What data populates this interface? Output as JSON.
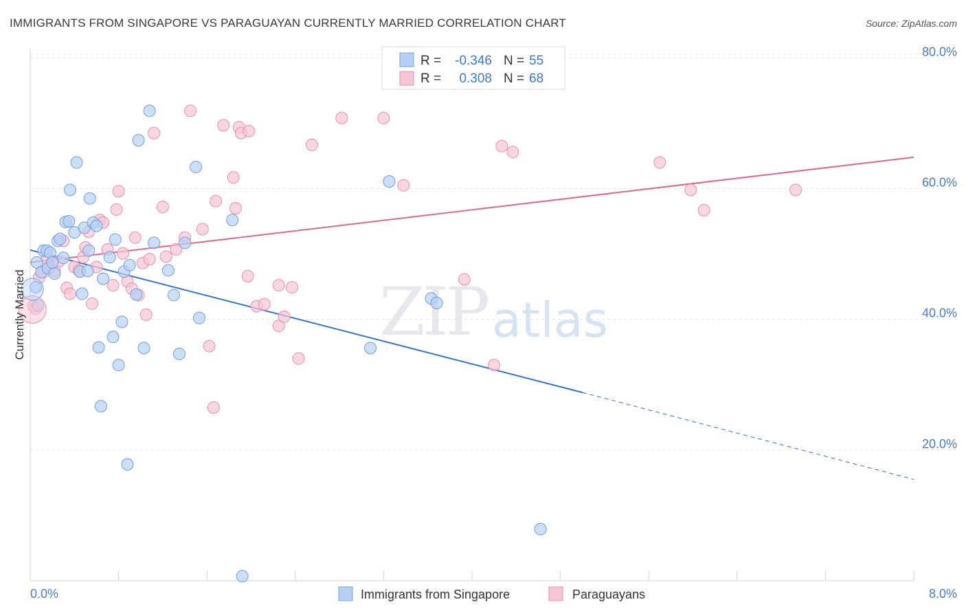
{
  "title": "IMMIGRANTS FROM SINGAPORE VS PARAGUAYAN CURRENTLY MARRIED CORRELATION CHART",
  "source": "Source: ZipAtlas.com",
  "watermark": {
    "part1": "ZIP",
    "part2": "atlas"
  },
  "colors": {
    "blue_fill": "#b8d0f3",
    "blue_stroke": "#6f9fe0",
    "blue_line": "#2f72d0",
    "pink_fill": "#f7c6d6",
    "pink_stroke": "#ea8fab",
    "pink_line": "#e0648e",
    "grid": "#e3e6ea",
    "tick_text": "#4a7cc7"
  },
  "legend": {
    "r_label": "R =",
    "n_label": "N =",
    "rows": [
      {
        "series": "Immigrants from Singapore",
        "r": "-0.346",
        "n": "55"
      },
      {
        "series": "Paraguayans",
        "r": "0.308",
        "n": "68"
      }
    ]
  },
  "chart_data": {
    "type": "scatter",
    "title": "IMMIGRANTS FROM SINGAPORE VS PARAGUAYAN CURRENTLY MARRIED CORRELATION CHART",
    "xlabel": "",
    "ylabel": "Currently Married",
    "xlim": [
      0,
      8
    ],
    "ylim": [
      0,
      81.5
    ],
    "x_tick_labels": [
      "0.0%",
      "8.0%"
    ],
    "y_ticks": [
      20,
      40,
      60,
      80
    ],
    "y_tick_labels": [
      "20.0%",
      "40.0%",
      "60.0%",
      "80.0%"
    ],
    "grid": true,
    "legend_position": "top-center",
    "series": [
      {
        "name": "Immigrants from Singapore",
        "color": "blue",
        "trend": {
          "x0": 0,
          "y0": 50.6,
          "x1": 5.0,
          "y1": 28.8,
          "x_dash_end": 8.0,
          "y_dash_end": 15.5
        },
        "points": [
          [
            0.06,
            48.7
          ],
          [
            0.1,
            47.2
          ],
          [
            0.12,
            50.5
          ],
          [
            0.15,
            50.5
          ],
          [
            0.16,
            47.8
          ],
          [
            0.18,
            50.2
          ],
          [
            0.2,
            48.7
          ],
          [
            0.25,
            52.0
          ],
          [
            0.27,
            52.3
          ],
          [
            0.3,
            49.4
          ],
          [
            0.32,
            54.9
          ],
          [
            0.35,
            55.0
          ],
          [
            0.36,
            59.8
          ],
          [
            0.4,
            53.3
          ],
          [
            0.42,
            64.0
          ],
          [
            0.45,
            47.3
          ],
          [
            0.47,
            43.9
          ],
          [
            0.49,
            54.0
          ],
          [
            0.52,
            47.4
          ],
          [
            0.53,
            50.5
          ],
          [
            0.54,
            58.5
          ],
          [
            0.57,
            54.8
          ],
          [
            0.6,
            54.3
          ],
          [
            0.62,
            35.7
          ],
          [
            0.64,
            26.7
          ],
          [
            0.66,
            46.2
          ],
          [
            0.72,
            49.5
          ],
          [
            0.75,
            37.3
          ],
          [
            0.77,
            52.2
          ],
          [
            0.8,
            33.0
          ],
          [
            0.83,
            39.6
          ],
          [
            0.85,
            47.3
          ],
          [
            0.88,
            17.8
          ],
          [
            0.9,
            48.3
          ],
          [
            0.96,
            43.8
          ],
          [
            0.98,
            67.4
          ],
          [
            1.03,
            35.6
          ],
          [
            1.08,
            71.9
          ],
          [
            1.12,
            51.7
          ],
          [
            1.25,
            47.5
          ],
          [
            1.3,
            43.7
          ],
          [
            1.35,
            34.7
          ],
          [
            1.4,
            51.7
          ],
          [
            1.5,
            63.3
          ],
          [
            1.53,
            40.2
          ],
          [
            1.83,
            55.2
          ],
          [
            1.92,
            0.7
          ],
          [
            3.25,
            61.1
          ],
          [
            3.08,
            35.6
          ],
          [
            3.63,
            43.2
          ],
          [
            3.68,
            42.5
          ],
          [
            4.62,
            7.9
          ],
          [
            0.05,
            44.9
          ],
          [
            0.07,
            42.1
          ],
          [
            0.22,
            47.0
          ]
        ]
      },
      {
        "name": "Paraguayans",
        "color": "pink",
        "trend": {
          "x0": 0,
          "y0": 48.7,
          "x1": 8.0,
          "y1": 64.8
        },
        "points": [
          [
            0.03,
            42.0
          ],
          [
            0.05,
            41.6
          ],
          [
            0.08,
            46.4
          ],
          [
            0.12,
            47.2
          ],
          [
            0.15,
            49.3
          ],
          [
            0.18,
            48.0
          ],
          [
            0.22,
            47.4
          ],
          [
            0.26,
            48.9
          ],
          [
            0.3,
            52.0
          ],
          [
            0.33,
            44.8
          ],
          [
            0.36,
            43.9
          ],
          [
            0.4,
            48.0
          ],
          [
            0.44,
            47.5
          ],
          [
            0.48,
            49.5
          ],
          [
            0.5,
            51.0
          ],
          [
            0.53,
            53.4
          ],
          [
            0.56,
            42.4
          ],
          [
            0.6,
            48.0
          ],
          [
            0.63,
            55.2
          ],
          [
            0.66,
            54.8
          ],
          [
            0.7,
            50.7
          ],
          [
            0.75,
            45.2
          ],
          [
            0.78,
            56.8
          ],
          [
            0.8,
            59.6
          ],
          [
            0.84,
            50.1
          ],
          [
            0.88,
            45.8
          ],
          [
            0.92,
            44.7
          ],
          [
            0.95,
            52.5
          ],
          [
            0.98,
            43.7
          ],
          [
            1.02,
            48.6
          ],
          [
            1.05,
            40.7
          ],
          [
            1.08,
            49.2
          ],
          [
            1.12,
            68.5
          ],
          [
            1.2,
            57.2
          ],
          [
            1.23,
            49.6
          ],
          [
            1.32,
            50.7
          ],
          [
            1.4,
            52.5
          ],
          [
            1.45,
            71.9
          ],
          [
            1.56,
            53.8
          ],
          [
            1.62,
            35.9
          ],
          [
            1.66,
            26.5
          ],
          [
            1.68,
            58.1
          ],
          [
            1.75,
            69.7
          ],
          [
            1.84,
            61.7
          ],
          [
            1.86,
            57.0
          ],
          [
            1.89,
            69.4
          ],
          [
            1.91,
            68.5
          ],
          [
            1.98,
            68.8
          ],
          [
            1.97,
            46.6
          ],
          [
            2.05,
            42.0
          ],
          [
            2.12,
            42.3
          ],
          [
            2.25,
            45.2
          ],
          [
            2.25,
            39.0
          ],
          [
            2.3,
            40.4
          ],
          [
            2.37,
            44.9
          ],
          [
            2.43,
            34.0
          ],
          [
            2.55,
            66.7
          ],
          [
            2.82,
            70.8
          ],
          [
            3.2,
            70.8
          ],
          [
            3.38,
            60.5
          ],
          [
            3.93,
            46.1
          ],
          [
            4.2,
            33.0
          ],
          [
            4.27,
            66.5
          ],
          [
            4.37,
            65.6
          ],
          [
            5.7,
            64.0
          ],
          [
            5.98,
            59.8
          ],
          [
            6.1,
            56.7
          ],
          [
            6.93,
            59.8
          ]
        ]
      }
    ]
  }
}
